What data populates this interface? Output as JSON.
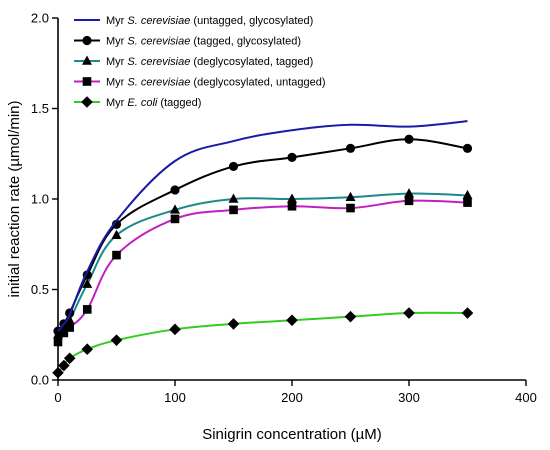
{
  "chart_data": {
    "type": "line",
    "title": "",
    "xlabel": "Sinigrin concentration (µM)",
    "ylabel": "initial reaction rate (µmol/min)",
    "xlim": [
      0,
      400
    ],
    "ylim": [
      0,
      2.0
    ],
    "xticks": [
      "0",
      "100",
      "200",
      "300",
      "400"
    ],
    "yticks": [
      "0.0",
      "0.5",
      "1.0",
      "1.5",
      "2.0"
    ],
    "grid": false,
    "legend_position": "top-left",
    "series": [
      {
        "name_parts": [
          "Myr ",
          "S. cerevisiae",
          " (untagged, glycosylated)"
        ],
        "color": "#1a1aa8",
        "marker": "none",
        "x": [
          0,
          5,
          10,
          25,
          50,
          100,
          150,
          200,
          250,
          300,
          350
        ],
        "y": [
          0.27,
          0.31,
          0.36,
          0.6,
          0.88,
          1.21,
          1.32,
          1.38,
          1.41,
          1.4,
          1.43
        ]
      },
      {
        "name_parts": [
          "Myr ",
          "S. cerevisiae",
          " (tagged, glycosylated)"
        ],
        "color": "#000000",
        "marker": "circle",
        "x": [
          0,
          5,
          10,
          25,
          50,
          100,
          150,
          200,
          250,
          300,
          350
        ],
        "y": [
          0.27,
          0.31,
          0.37,
          0.58,
          0.86,
          1.05,
          1.18,
          1.23,
          1.28,
          1.33,
          1.28
        ]
      },
      {
        "name_parts": [
          "Myr ",
          "S. cerevisiae",
          " (deglycosylated, tagged)"
        ],
        "color": "#1a8a8a",
        "marker": "triangle",
        "x": [
          0,
          5,
          10,
          25,
          50,
          100,
          150,
          200,
          250,
          300,
          350
        ],
        "y": [
          0.25,
          0.29,
          0.33,
          0.53,
          0.8,
          0.94,
          1.0,
          1.0,
          1.01,
          1.03,
          1.02
        ]
      },
      {
        "name_parts": [
          "Myr ",
          "S. cerevisiae",
          " (deglycosylated, untagged)"
        ],
        "color": "#c020c0",
        "marker": "square",
        "x": [
          0,
          5,
          10,
          25,
          50,
          100,
          150,
          200,
          250,
          300,
          350
        ],
        "y": [
          0.21,
          0.26,
          0.29,
          0.39,
          0.69,
          0.89,
          0.94,
          0.96,
          0.95,
          0.99,
          0.98
        ]
      },
      {
        "name_parts": [
          "Myr ",
          "E. coli",
          " (tagged)"
        ],
        "color": "#33cc22",
        "marker": "diamond",
        "x": [
          0,
          5,
          10,
          25,
          50,
          100,
          150,
          200,
          250,
          300,
          350
        ],
        "y": [
          0.04,
          0.08,
          0.12,
          0.17,
          0.22,
          0.28,
          0.31,
          0.33,
          0.35,
          0.37,
          0.37
        ]
      }
    ]
  }
}
